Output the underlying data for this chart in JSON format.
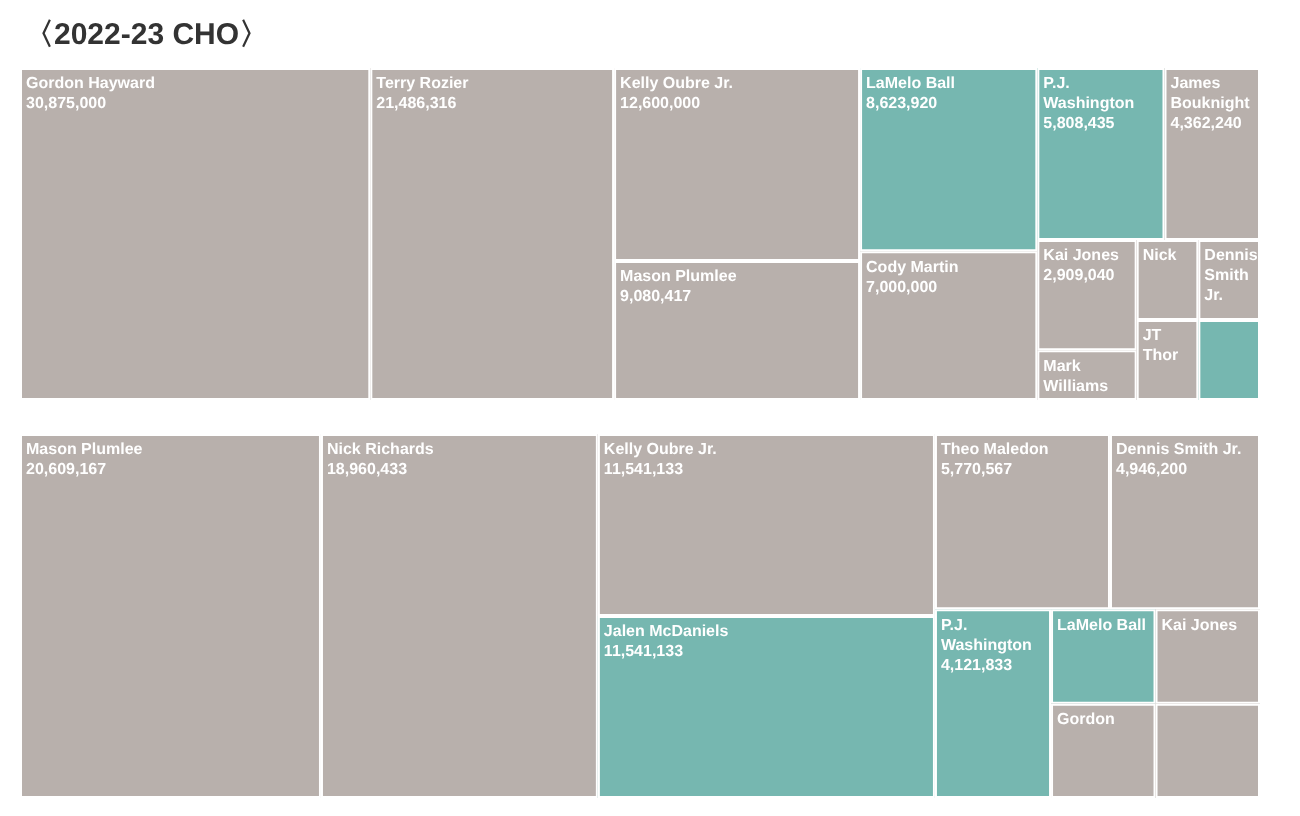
{
  "chart_data": [
    {
      "type": "other",
      "title": "〈2022-23 CHO〉",
      "categories": [
        "Gordon Hayward",
        "Terry Rozier",
        "Kelly Oubre Jr.",
        "Mason Plumlee",
        "LaMelo Ball",
        "Cody Martin",
        "P.J. Washington",
        "James Bouknight",
        "Kai Jones",
        "Mark Williams",
        "Nick",
        "Dennis Smith Jr.",
        "JT Thor",
        null
      ],
      "values": [
        30875000,
        21486316,
        12600000,
        9080417,
        8623920,
        7000000,
        5808435,
        4362240,
        2909040,
        null,
        null,
        null,
        null,
        null
      ],
      "value_labels": [
        "30,875,000",
        "21,486,316",
        "12,600,000",
        "9,080,417",
        "8,623,920",
        "7,000,000",
        "5,808,435",
        "4,362,240",
        "2,909,040",
        null,
        null,
        null,
        null,
        null
      ],
      "colors": [
        "#b8b0ac",
        "#b8b0ac",
        "#b8b0ac",
        "#b8b0ac",
        "#76b7b0",
        "#b8b0ac",
        "#76b7b0",
        "#b8b0ac",
        "#b8b0ac",
        "#b8b0ac",
        "#b8b0ac",
        "#b8b0ac",
        "#b8b0ac",
        "#76b7b0"
      ]
    },
    {
      "type": "other",
      "categories": [
        "Mason Plumlee",
        "Nick Richards",
        "Kelly Oubre Jr.",
        "Jalen McDaniels",
        "Theo Maledon",
        "Dennis Smith Jr.",
        "P.J. Washington",
        "LaMelo Ball",
        "Gordon",
        "Kai Jones",
        null
      ],
      "values": [
        20609167,
        18960433,
        11541133,
        11541133,
        5770567,
        4946200,
        4121833,
        null,
        null,
        null,
        null
      ],
      "value_labels": [
        "20,609,167",
        "18,960,433",
        "11,541,133",
        "11,541,133",
        "5,770,567",
        "4,946,200",
        "4,121,833",
        null,
        null,
        null,
        null
      ],
      "colors": [
        "#b8b0ac",
        "#b8b0ac",
        "#b8b0ac",
        "#76b7b0",
        "#b8b0ac",
        "#b8b0ac",
        "#76b7b0",
        "#76b7b0",
        "#b8b0ac",
        "#b8b0ac",
        "#b8b0ac"
      ]
    }
  ]
}
